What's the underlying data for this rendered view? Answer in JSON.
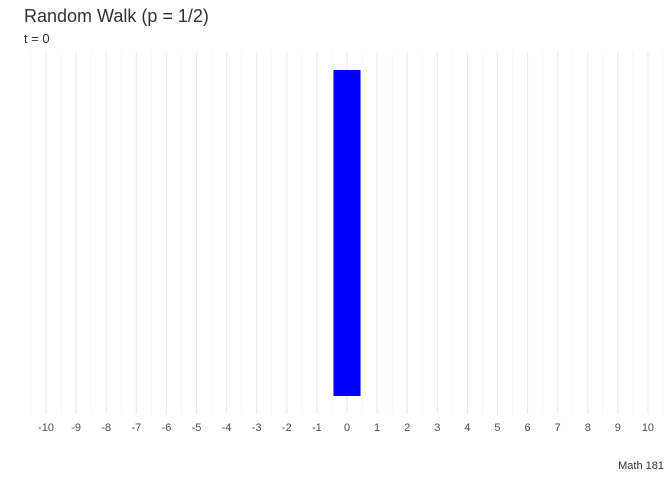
{
  "chart_data": {
    "type": "bar",
    "title": "Random Walk (p = 1/2)",
    "subtitle": "t = 0",
    "caption": "Math 181",
    "xlabel": "",
    "ylabel": "",
    "x_ticks": [
      "-10",
      "-9",
      "-8",
      "-7",
      "-6",
      "-5",
      "-4",
      "-3",
      "-2",
      "-1",
      "0",
      "1",
      "2",
      "3",
      "4",
      "5",
      "6",
      "7",
      "8",
      "9",
      "10"
    ],
    "xlim": [
      -10.6,
      10.6
    ],
    "ylim": [
      0,
      1
    ],
    "grid": true,
    "legend": "none",
    "bar_color": "#0000FF",
    "bars": [
      {
        "x": 0,
        "value": 1
      }
    ]
  }
}
